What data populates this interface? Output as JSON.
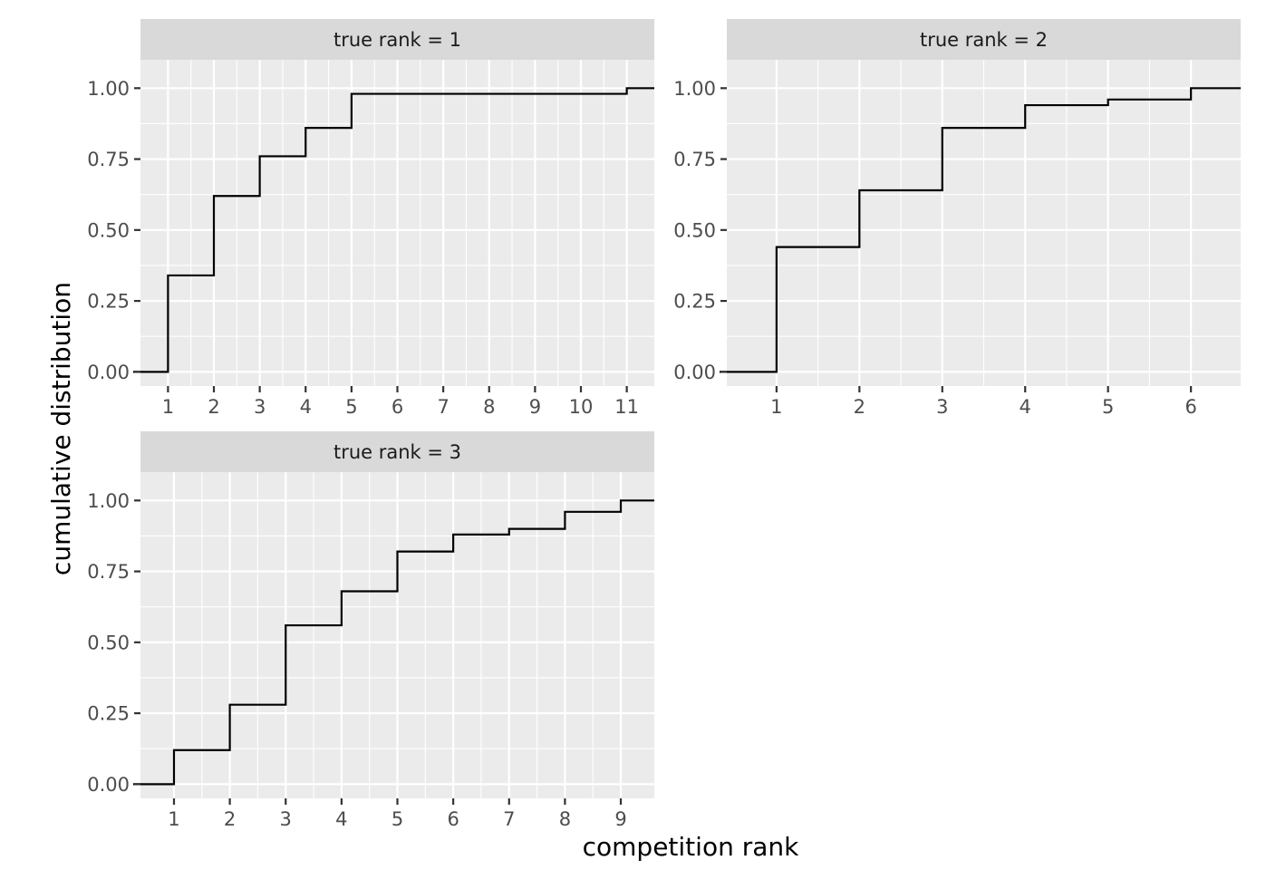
{
  "chart_data": {
    "type": "line",
    "subtype": "step (empirical cumulative distribution), faceted",
    "xlabel": "competition rank",
    "ylabel": "cumulative distribution",
    "grid": true,
    "ylim": [
      0,
      1
    ],
    "y_ticks": [
      "0.00",
      "0.25",
      "0.50",
      "0.75",
      "1.00"
    ],
    "panels": [
      {
        "strip": "true rank = 1",
        "x_ticks": [
          "1",
          "2",
          "3",
          "4",
          "5",
          "6",
          "7",
          "8",
          "9",
          "10",
          "11"
        ],
        "xlim": [
          1,
          11
        ],
        "x": [
          1,
          2,
          3,
          4,
          5,
          11
        ],
        "y": [
          0.34,
          0.62,
          0.76,
          0.86,
          0.98,
          1.0
        ]
      },
      {
        "strip": "true rank = 2",
        "x_ticks": [
          "1",
          "2",
          "3",
          "4",
          "5",
          "6"
        ],
        "xlim": [
          1,
          6
        ],
        "x": [
          1,
          2,
          3,
          4,
          5,
          6
        ],
        "y": [
          0.44,
          0.64,
          0.86,
          0.94,
          0.96,
          1.0
        ]
      },
      {
        "strip": "true rank = 3",
        "x_ticks": [
          "1",
          "2",
          "3",
          "4",
          "5",
          "6",
          "7",
          "8",
          "9"
        ],
        "xlim": [
          1,
          9
        ],
        "x": [
          1,
          2,
          3,
          4,
          5,
          6,
          7,
          8,
          9
        ],
        "y": [
          0.12,
          0.28,
          0.56,
          0.68,
          0.82,
          0.88,
          0.9,
          0.96,
          1.0
        ]
      }
    ]
  }
}
